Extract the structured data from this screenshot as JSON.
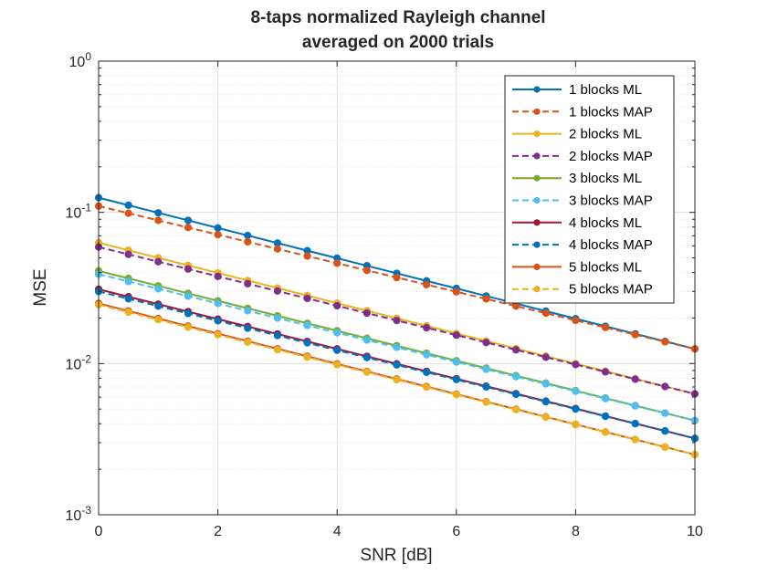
{
  "chart_data": {
    "type": "line",
    "title": [
      "8-taps normalized Rayleigh channel",
      "averaged on 2000 trials"
    ],
    "xlabel": "SNR [dB]",
    "ylabel": "MSE",
    "xlim": [
      0,
      10
    ],
    "ylim": [
      0.001,
      1
    ],
    "yscale": "log",
    "grid": true,
    "minor_grid": true,
    "legend_position": "top-right",
    "x_ticks": [
      {
        "value": 0,
        "label": "0"
      },
      {
        "value": 2,
        "label": "2"
      },
      {
        "value": 4,
        "label": "4"
      },
      {
        "value": 6,
        "label": "6"
      },
      {
        "value": 8,
        "label": "8"
      },
      {
        "value": 10,
        "label": "10"
      }
    ],
    "y_ticks": [
      {
        "value": 0.001,
        "base": "10",
        "exp": "-3"
      },
      {
        "value": 0.01,
        "base": "10",
        "exp": "-2"
      },
      {
        "value": 0.1,
        "base": "10",
        "exp": "-1"
      },
      {
        "value": 1,
        "base": "10",
        "exp": "0"
      }
    ],
    "x": [
      0,
      0.5,
      1,
      1.5,
      2,
      2.5,
      3,
      3.5,
      4,
      4.5,
      5,
      5.5,
      6,
      6.5,
      7,
      7.5,
      8,
      8.5,
      9,
      9.5,
      10
    ],
    "series": [
      {
        "name": "1 blocks ML",
        "color": "#0072BD",
        "dash": false,
        "y0": 0.125,
        "y1": 0.0125
      },
      {
        "name": "1 blocks MAP",
        "color": "#D95319",
        "dash": true,
        "y0": 0.11,
        "y1": 0.0125
      },
      {
        "name": "2 blocks ML",
        "color": "#EDB120",
        "dash": false,
        "y0": 0.063,
        "y1": 0.0063
      },
      {
        "name": "2 blocks MAP",
        "color": "#7E2F8E",
        "dash": true,
        "y0": 0.059,
        "y1": 0.0063
      },
      {
        "name": "3 blocks ML",
        "color": "#77AC30",
        "dash": false,
        "y0": 0.041,
        "y1": 0.0042
      },
      {
        "name": "3 blocks MAP",
        "color": "#4DBEEE",
        "dash": true,
        "y0": 0.039,
        "y1": 0.0042
      },
      {
        "name": "4 blocks ML",
        "color": "#A2142F",
        "dash": false,
        "y0": 0.031,
        "y1": 0.0032
      },
      {
        "name": "4 blocks MAP",
        "color": "#0072BD",
        "dash": true,
        "y0": 0.03,
        "y1": 0.0032
      },
      {
        "name": "5 blocks ML",
        "color": "#D95319",
        "dash": false,
        "y0": 0.025,
        "y1": 0.0025
      },
      {
        "name": "5 blocks MAP",
        "color": "#EDB120",
        "dash": true,
        "y0": 0.0245,
        "y1": 0.0025
      }
    ]
  }
}
